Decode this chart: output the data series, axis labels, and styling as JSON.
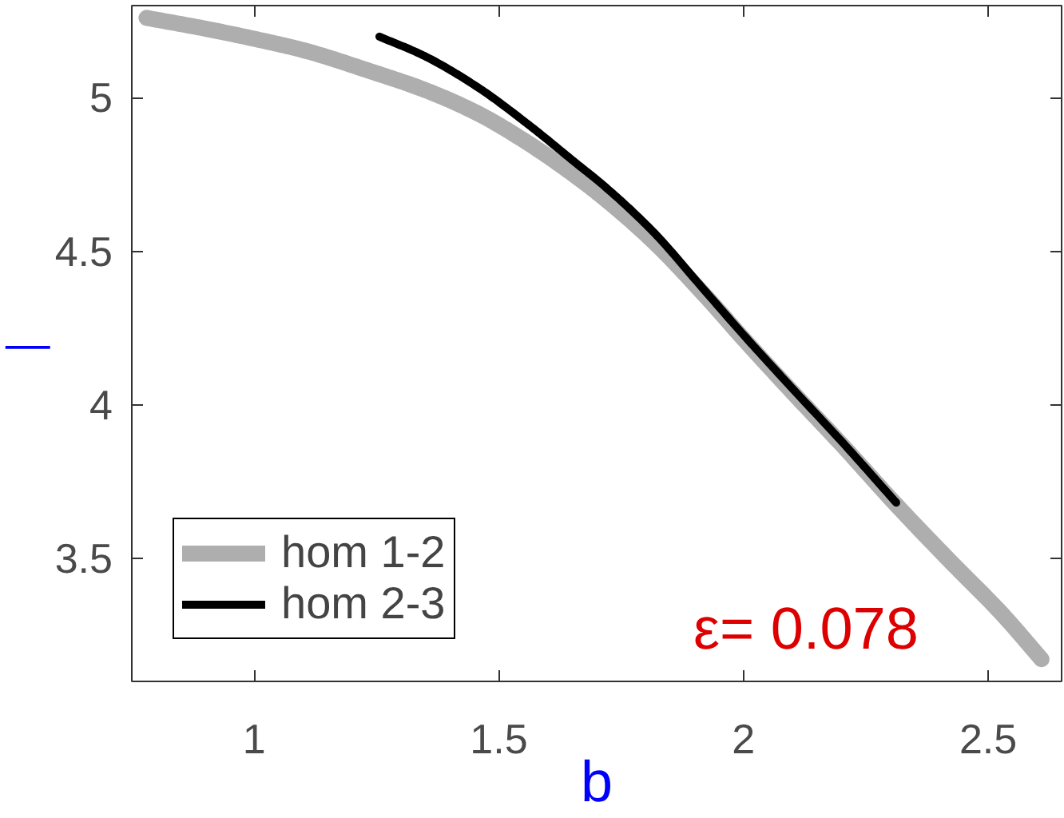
{
  "chart_data": {
    "type": "line",
    "xlabel": "b",
    "ylabel": "—",
    "xlim": [
      0.75,
      2.65
    ],
    "ylim": [
      3.1,
      5.3
    ],
    "xticks": [
      1,
      1.5,
      2,
      2.5
    ],
    "yticks": [
      3.5,
      4,
      4.5,
      5
    ],
    "legend": "bottom left",
    "line_style": "solid",
    "annotations": [
      "ε= 0.078"
    ],
    "series": [
      {
        "name": "hom 1-2",
        "color": "#aeaeae",
        "x": [
          0.78,
          0.9,
          1.0,
          1.1,
          1.24,
          1.348,
          1.457,
          1.565,
          1.657,
          1.71,
          1.814,
          1.922,
          2.0,
          2.095,
          2.204,
          2.312,
          2.42,
          2.528,
          2.609
        ],
        "values": [
          5.26,
          5.225,
          5.192,
          5.155,
          5.085,
          5.026,
          4.949,
          4.847,
          4.745,
          4.68,
          4.535,
          4.355,
          4.215,
          4.05,
          3.865,
          3.675,
          3.495,
          3.32,
          3.172
        ]
      },
      {
        "name": "hom 2-3",
        "color": "#000000",
        "x": [
          1.256,
          1.348,
          1.457,
          1.565,
          1.657,
          1.71,
          1.814,
          1.922,
          2.0,
          2.095,
          2.204,
          2.312
        ],
        "values": [
          5.199,
          5.136,
          5.034,
          4.907,
          4.788,
          4.72,
          4.566,
          4.37,
          4.228,
          4.062,
          3.875,
          3.682
        ]
      }
    ]
  }
}
